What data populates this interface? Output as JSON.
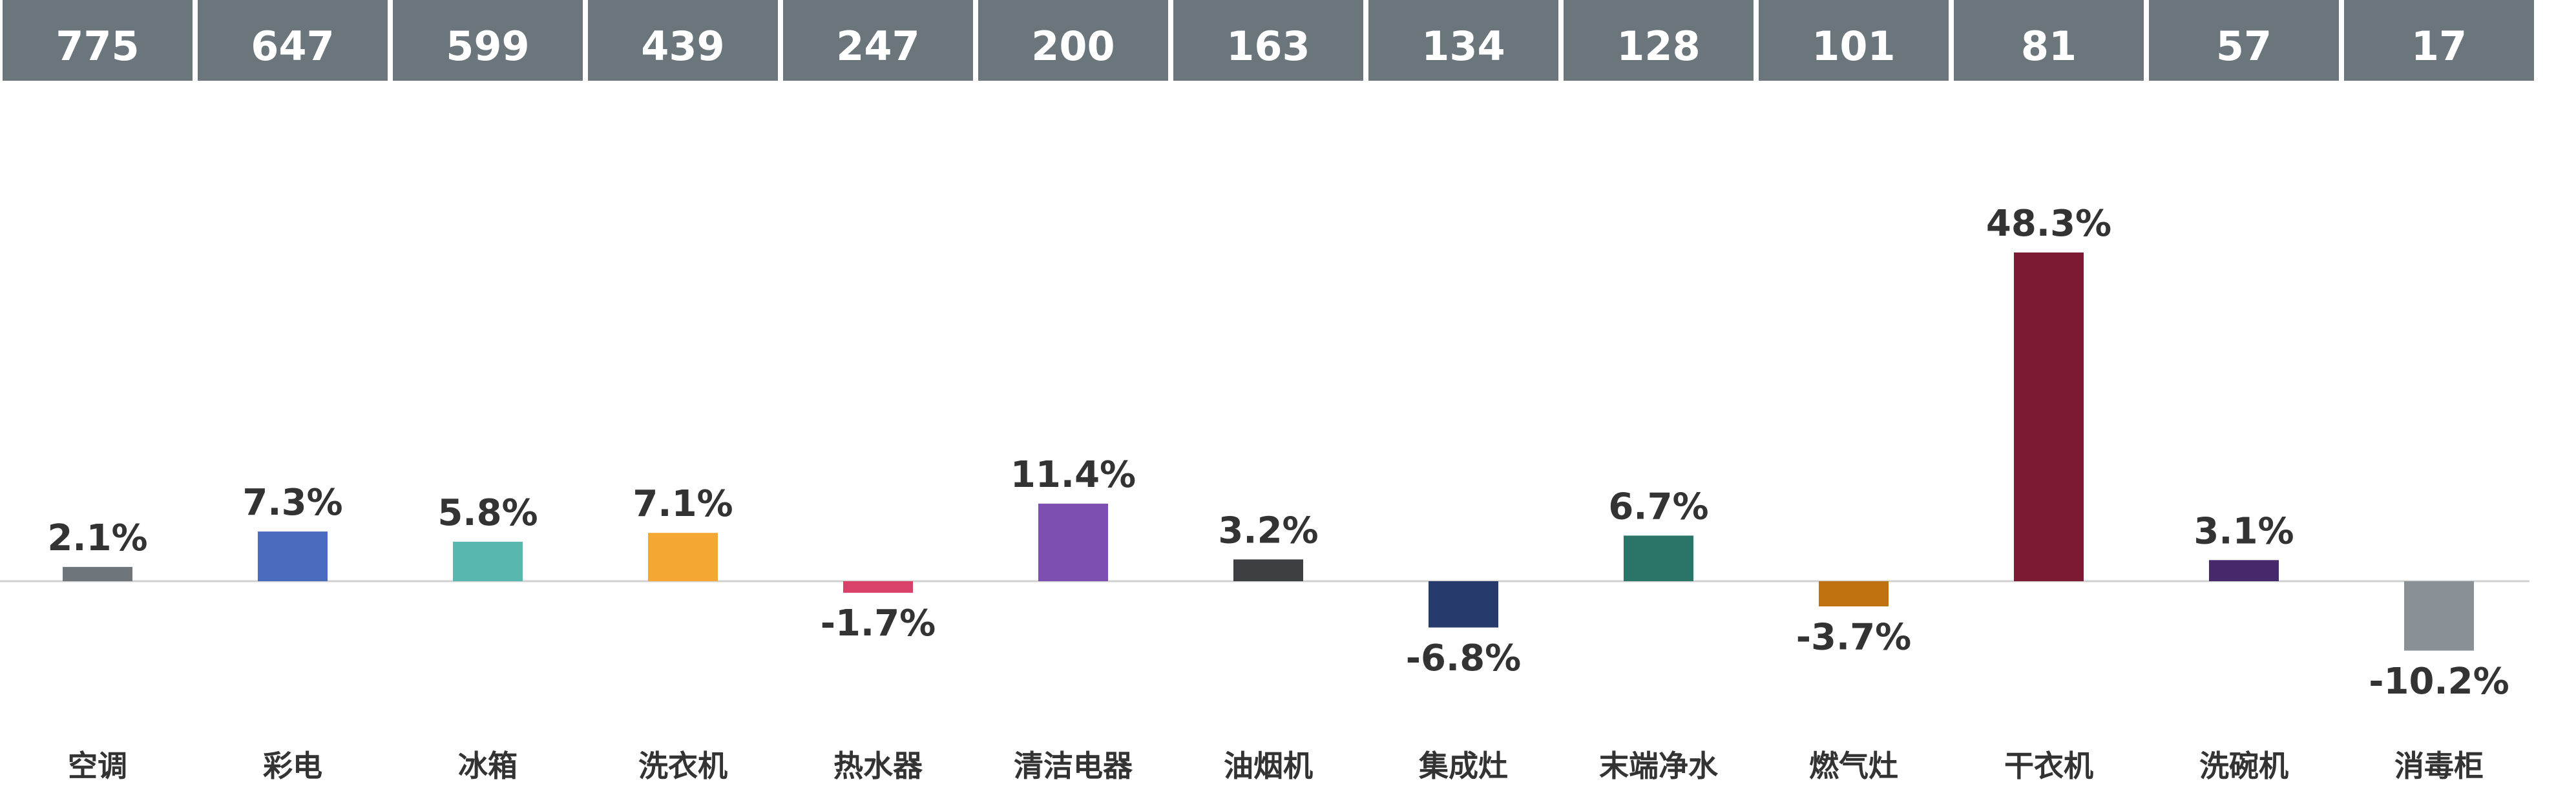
{
  "chart_data": {
    "type": "bar",
    "categories": [
      "空调",
      "彩电",
      "冰箱",
      "洗衣机",
      "热水器",
      "清洁电器",
      "油烟机",
      "集成灶",
      "末端净水",
      "燃气灶",
      "干衣机",
      "洗碗机",
      "消毒柜"
    ],
    "header_values": [
      "775",
      "647",
      "599",
      "439",
      "247",
      "200",
      "163",
      "134",
      "128",
      "101",
      "81",
      "57",
      "17"
    ],
    "values": [
      2.1,
      7.3,
      5.8,
      7.1,
      -1.7,
      11.4,
      3.2,
      -6.8,
      6.7,
      -3.7,
      48.3,
      3.1,
      -10.2
    ],
    "value_labels": [
      "2.1%",
      "7.3%",
      "5.8%",
      "7.1%",
      "-1.7%",
      "11.4%",
      "3.2%",
      "-6.8%",
      "6.7%",
      "-3.7%",
      "48.3%",
      "3.1%",
      "-10.2%"
    ],
    "colors": [
      "#6f767b",
      "#4a6cbf",
      "#58b8b0",
      "#f5a733",
      "#d9406a",
      "#7d4fb0",
      "#3d3f42",
      "#263a6b",
      "#2a7568",
      "#c0710f",
      "#7b1a32",
      "#46296b",
      "#8a9196"
    ],
    "header_color": "#6b757c",
    "ylim": [
      -10.2,
      48.3
    ]
  }
}
